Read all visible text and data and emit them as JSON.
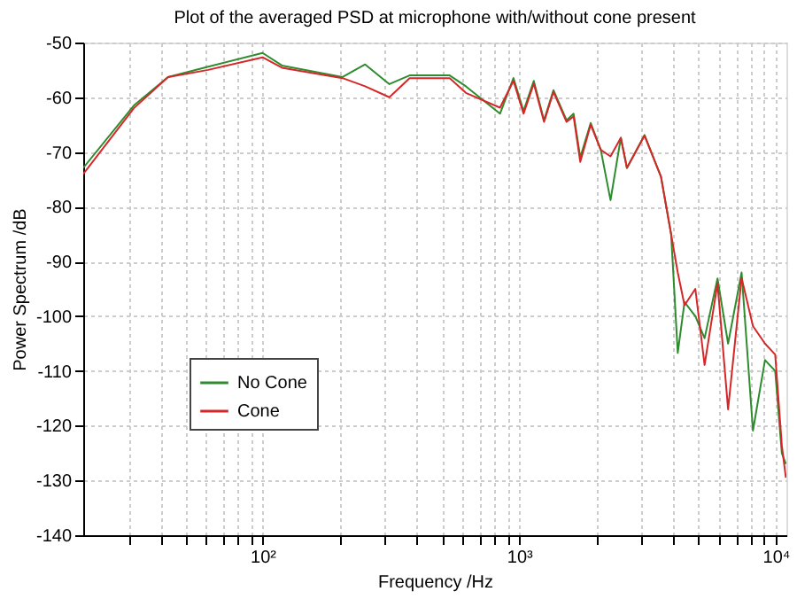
{
  "chart_data": {
    "type": "line",
    "title": "Plot of the averaged PSD at microphone with/without cone present",
    "xlabel": "Frequency /Hz",
    "ylabel": "Power Spectrum /dB",
    "log": "x",
    "grid": true,
    "legend": "bottom left",
    "line_style": "solid",
    "marker": "none",
    "xlim": [
      20,
      11000
    ],
    "ylim": [
      -140,
      -50
    ],
    "xticks": [
      {
        "value": 30,
        "label": null
      },
      {
        "value": 40,
        "label": null
      },
      {
        "value": 50,
        "label": null
      },
      {
        "value": 60,
        "label": null
      },
      {
        "value": 70,
        "label": null
      },
      {
        "value": 80,
        "label": null
      },
      {
        "value": 90,
        "label": null
      },
      {
        "value": 100,
        "label": "10²"
      },
      {
        "value": 200,
        "label": null
      },
      {
        "value": 300,
        "label": null
      },
      {
        "value": 400,
        "label": null
      },
      {
        "value": 500,
        "label": null
      },
      {
        "value": 600,
        "label": null
      },
      {
        "value": 700,
        "label": null
      },
      {
        "value": 800,
        "label": null
      },
      {
        "value": 900,
        "label": null
      },
      {
        "value": 1000,
        "label": "10³"
      },
      {
        "value": 2000,
        "label": null
      },
      {
        "value": 3000,
        "label": null
      },
      {
        "value": 4000,
        "label": null
      },
      {
        "value": 5000,
        "label": null
      },
      {
        "value": 6000,
        "label": null
      },
      {
        "value": 7000,
        "label": null
      },
      {
        "value": 8000,
        "label": null
      },
      {
        "value": 9000,
        "label": null
      },
      {
        "value": 10000,
        "label": "10⁴"
      }
    ],
    "yticks": [
      -140,
      -130,
      -120,
      -110,
      -100,
      -90,
      -80,
      -70,
      -60,
      -50
    ],
    "x": [
      20,
      31.5,
      42.8,
      61.4,
      100,
      119,
      205,
      251,
      312,
      374,
      536,
      620,
      842,
      950,
      1040,
      1140,
      1250,
      1360,
      1530,
      1630,
      1730,
      1900,
      2080,
      2270,
      2490,
      2630,
      3080,
      3570,
      3910,
      4150,
      4410,
      4860,
      5280,
      5930,
      6520,
      7360,
      8150,
      9080,
      9950,
      10560,
      10950
    ],
    "series": [
      {
        "name": "No Cone",
        "color": "#2e8b2e",
        "values": [
          -72.9,
          -61.5,
          -56.3,
          -54.4,
          -51.9,
          -54.2,
          -56.3,
          -54,
          -57.6,
          -56,
          -56,
          -58,
          -63,
          -56.5,
          -62.5,
          -57,
          -64.2,
          -58.7,
          -64.2,
          -63,
          -71,
          -64.7,
          -69.6,
          -78.8,
          -67.4,
          -72.9,
          -66.9,
          -74.5,
          -85,
          -106.7,
          -97.4,
          -100,
          -104,
          -93.1,
          -105,
          -92,
          -120.9,
          -108,
          -110,
          -125,
          -127
        ]
      },
      {
        "name": "Cone",
        "color": "#d62728",
        "values": [
          -74,
          -62,
          -56.3,
          -55,
          -52.7,
          -54.6,
          -56.5,
          -58,
          -60,
          -56.5,
          -56.5,
          -59.2,
          -61.9,
          -57,
          -63,
          -57.5,
          -64.5,
          -59,
          -64.5,
          -63.5,
          -71.8,
          -65,
          -69.6,
          -70.8,
          -67.4,
          -72.9,
          -67,
          -74.5,
          -85,
          -92,
          -98,
          -95,
          -108.9,
          -94,
          -117,
          -93,
          -101.8,
          -105,
          -107,
          -123.6,
          -129.5
        ]
      }
    ]
  }
}
